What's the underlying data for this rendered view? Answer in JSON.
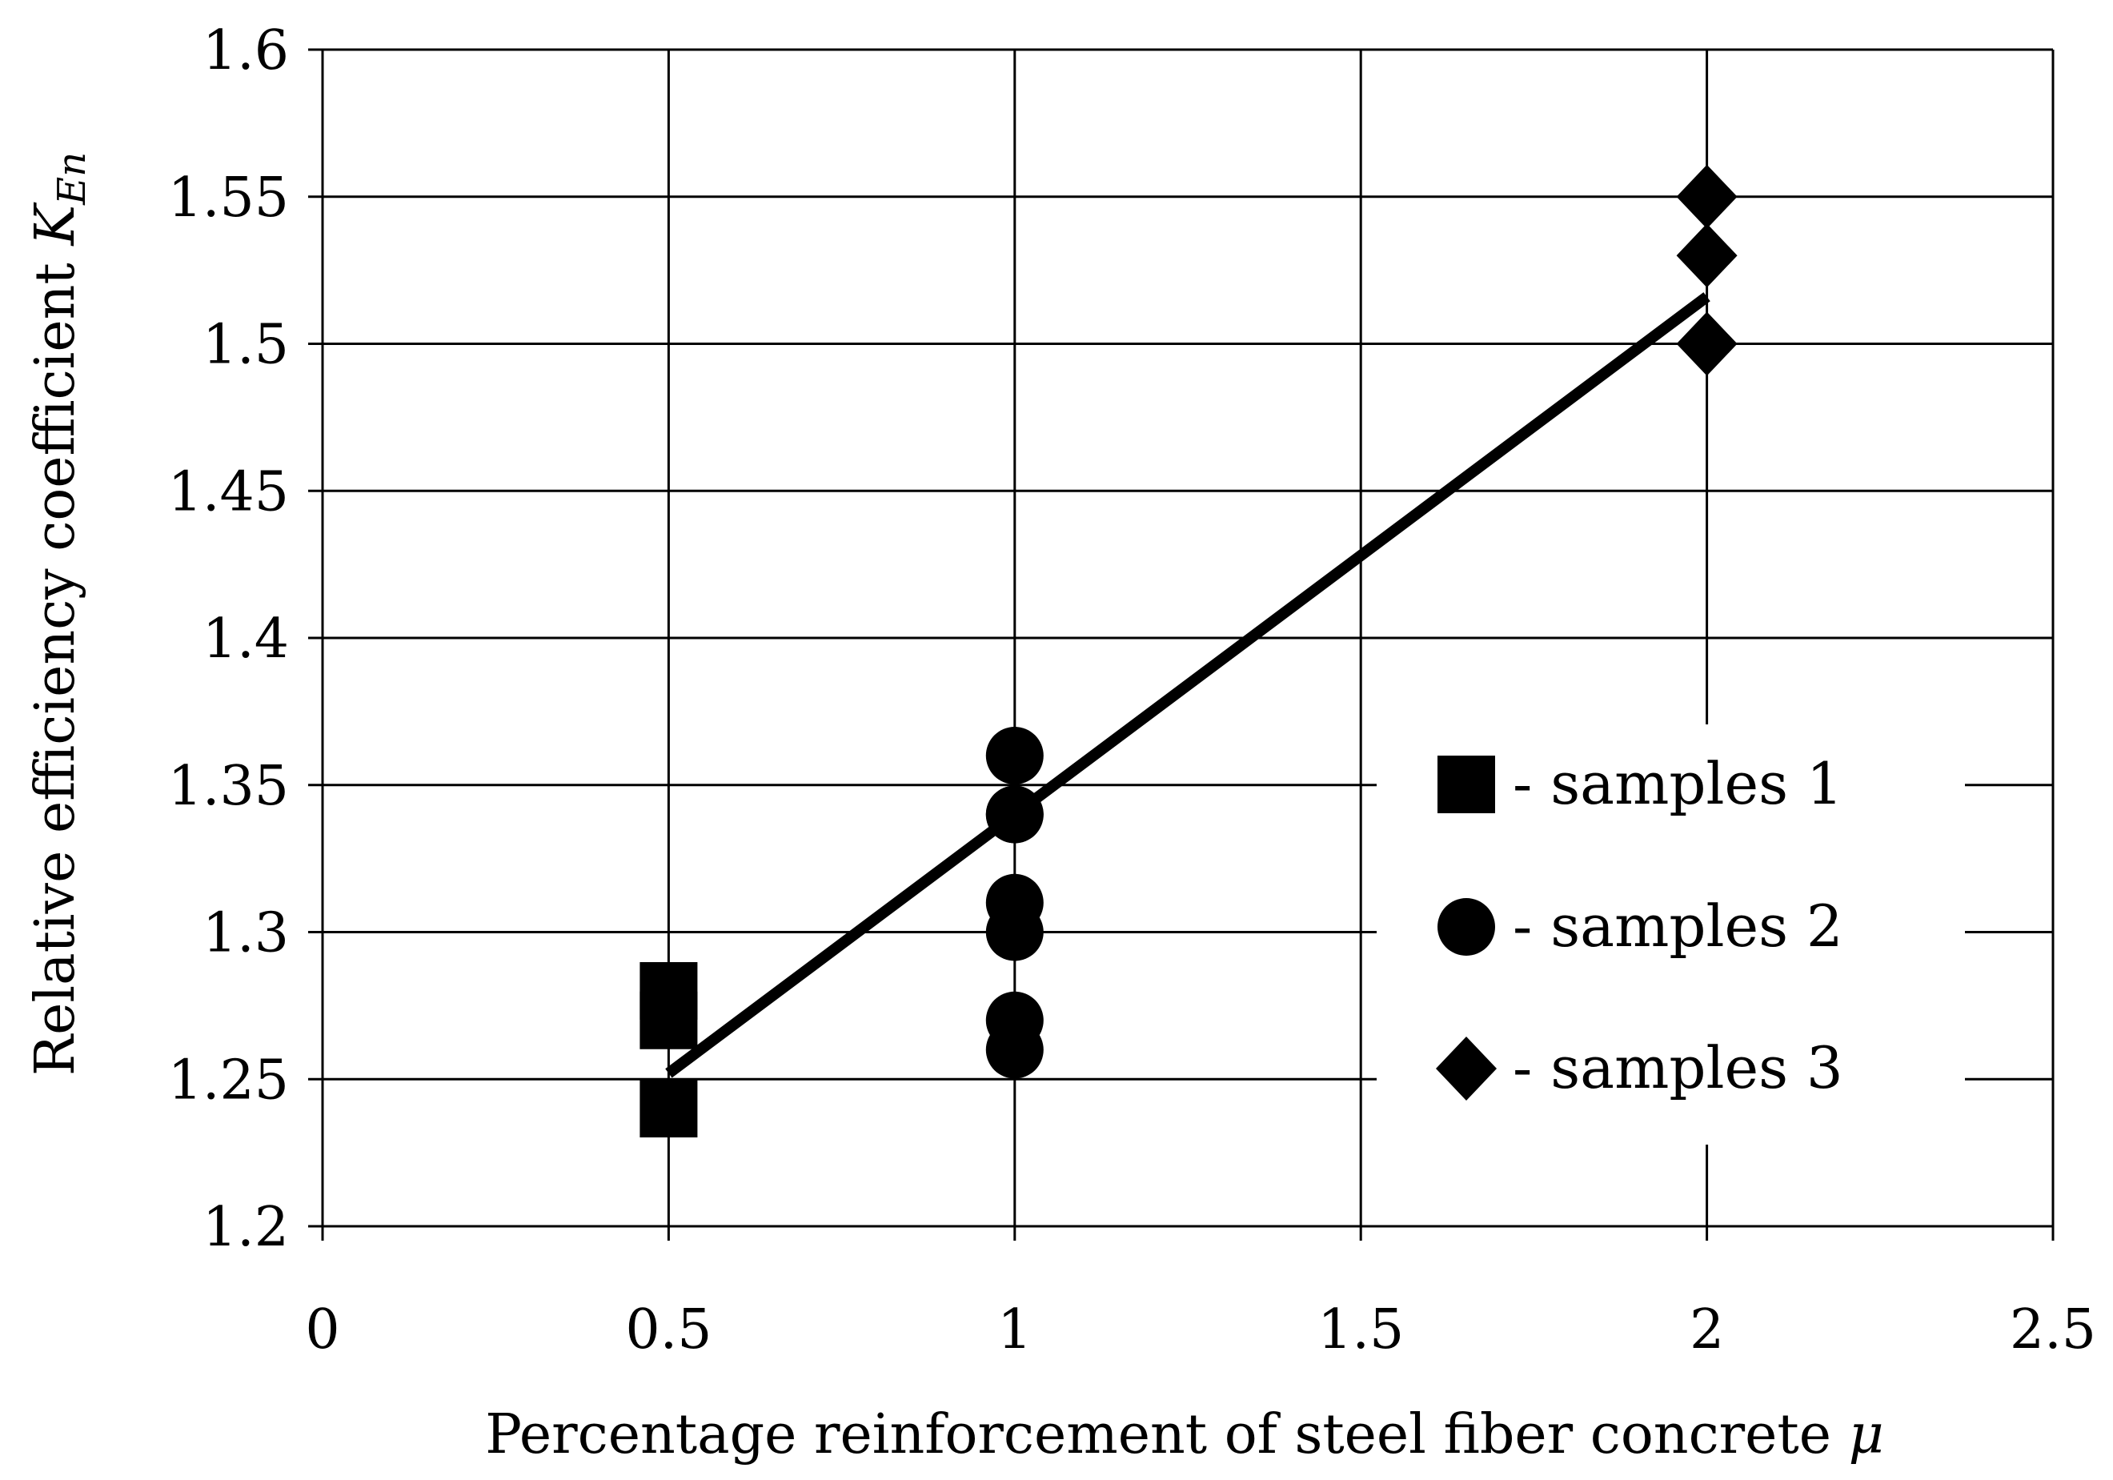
{
  "chart_data": {
    "type": "scatter",
    "title": "",
    "xlabel": {
      "text": "Percentage reinforcement of steel fiber concrete ",
      "symbol": "μ"
    },
    "ylabel": {
      "text": "Relative efficiency coefficient ",
      "symbol": "K",
      "subscript": "En"
    },
    "xlim": [
      0,
      2.5
    ],
    "ylim": [
      1.2,
      1.6
    ],
    "xticks": [
      0,
      0.5,
      1,
      1.5,
      2,
      2.5
    ],
    "xtick_labels": [
      "0",
      "0.5",
      "1",
      "1.5",
      "2",
      "2.5"
    ],
    "yticks": [
      1.2,
      1.25,
      1.3,
      1.35,
      1.4,
      1.45,
      1.5,
      1.55,
      1.6
    ],
    "ytick_labels": [
      "1.2",
      "1.25",
      "1.3",
      "1.35",
      "1.4",
      "1.45",
      "1.5",
      "1.55",
      "1.6"
    ],
    "grid": true,
    "legend_position": "right",
    "series": [
      {
        "name": "samples 1",
        "marker": "square",
        "label": "- samples 1",
        "color": "#000000",
        "x": [
          0.5,
          0.5,
          0.5
        ],
        "y": [
          1.28,
          1.27,
          1.24
        ]
      },
      {
        "name": "samples 2",
        "marker": "circle",
        "label": "- samples 2",
        "color": "#000000",
        "x": [
          1,
          1,
          1,
          1,
          1,
          1,
          1
        ],
        "y": [
          1.36,
          1.34,
          1.31,
          1.3,
          1.27,
          1.26,
          1.34
        ]
      },
      {
        "name": "samples 3",
        "marker": "diamond",
        "label": "- samples 3",
        "color": "#000000",
        "x": [
          2,
          2,
          2
        ],
        "y": [
          1.55,
          1.53,
          1.5
        ]
      }
    ],
    "trendline": {
      "type": "linear",
      "x": [
        0.5,
        2
      ],
      "y": [
        1.252,
        1.516
      ],
      "color": "#000000"
    }
  }
}
